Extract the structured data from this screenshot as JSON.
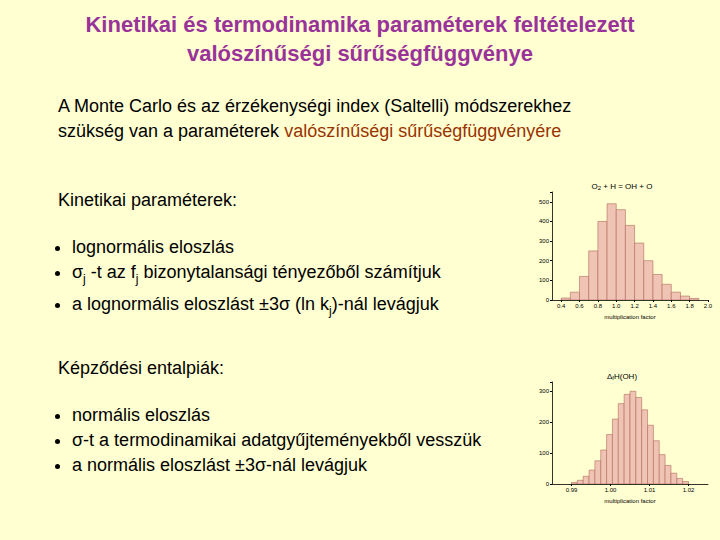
{
  "slide": {
    "title": [
      "Kinetikai és termodinamika paraméterek feltételezett",
      "valószínűségi sűrűségfüggvénye"
    ],
    "intro": [
      [
        "A Monte Carlo és az érzékenységi index (Saltelli) módszerekhez"
      ],
      [
        "szükség van a paraméterek ",
        {
          "text": "valószínűségi sűrűségfüggvényére",
          "color": "#993300"
        }
      ]
    ],
    "sections": [
      {
        "heading": "Kinetikai paraméterek:",
        "bullets": [
          [
            "lognormális eloszlás"
          ],
          [
            "σ",
            {
              "sub": "j"
            },
            " -t az f",
            {
              "sub": "j"
            },
            " bizonytalansági tényezőből számítjuk"
          ],
          [
            "a lognormális eloszlást ±3σ (ln k",
            {
              "sub": "j"
            },
            ")-nál levágjuk"
          ]
        ]
      },
      {
        "heading": "Képződési entalpiák:",
        "bullets": [
          [
            "normális eloszlás"
          ],
          [
            "σ-t a termodinamikai adatgyűjteményekből vesszük"
          ],
          [
            "a normális eloszlást ±3σ-nál levágjuk"
          ]
        ]
      }
    ]
  },
  "chart_data": [
    {
      "type": "histogram",
      "title": [
        "O",
        {
          "sub": "2"
        },
        " + H = OH + O"
      ],
      "x_label": "multiplication factor",
      "bins": [
        0.4,
        0.5,
        0.6,
        0.7,
        0.8,
        0.9,
        1.0,
        1.1,
        1.2,
        1.3,
        1.4,
        1.5,
        1.6,
        1.7,
        1.8,
        1.9
      ],
      "values": [
        10,
        40,
        120,
        250,
        400,
        490,
        460,
        380,
        290,
        200,
        130,
        80,
        40,
        20,
        8
      ],
      "color": "#f0c4b4",
      "xlim": [
        0.3,
        2.0
      ],
      "xticks": [
        0.4,
        0.6,
        0.8,
        {
          "value": 1,
          "label": "1.0"
        },
        1.2,
        1.4,
        1.6,
        1.8,
        {
          "value": 2,
          "label": "2.0"
        }
      ],
      "ylim": [
        0,
        550
      ],
      "yticks": [
        0,
        100,
        200,
        300,
        400,
        500
      ],
      "grid": false
    },
    {
      "type": "histogram",
      "title": [
        "Δ",
        {
          "sub": "f"
        },
        "H(OH)"
      ],
      "x_label": "multiplication factor",
      "bins": [
        0.99,
        0.9915,
        0.993,
        0.9945,
        0.996,
        0.9975,
        0.999,
        1.0005,
        1.002,
        1.0035,
        1.005,
        1.0065,
        1.008,
        1.0095,
        1.011,
        1.0125,
        1.014,
        1.0155,
        1.017,
        1.0185,
        1.02
      ],
      "values": [
        5,
        12,
        25,
        45,
        75,
        110,
        160,
        210,
        260,
        290,
        300,
        280,
        240,
        190,
        140,
        95,
        60,
        35,
        18,
        8
      ],
      "color": "#f0c4b4",
      "xlim": [
        0.985,
        1.025
      ],
      "xticks": [
        0.99,
        {
          "value": 1,
          "label": "1.00"
        },
        1.01,
        1.02
      ],
      "ylim": [
        0,
        330
      ],
      "yticks": [
        0,
        100,
        200,
        300
      ],
      "grid": false
    }
  ]
}
